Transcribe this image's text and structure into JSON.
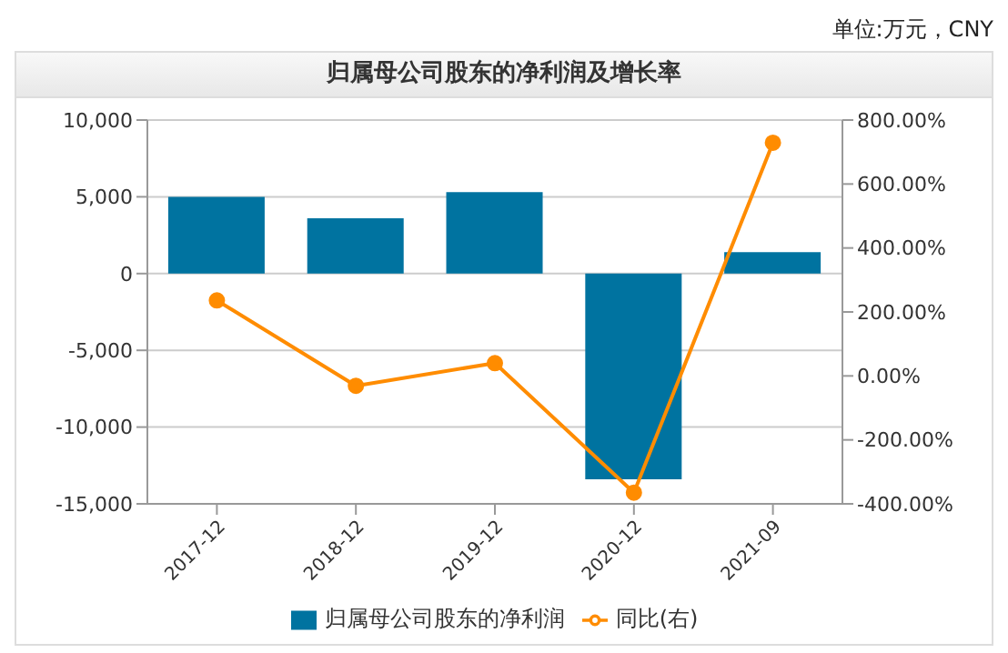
{
  "chart_data": {
    "type": "bar",
    "title": "归属母公司股东的净利润及增长率",
    "annotations": [
      "单位:万元，CNY"
    ],
    "categories": [
      "2017-12",
      "2018-12",
      "2019-12",
      "2020-12",
      "2021-09"
    ],
    "series": [
      {
        "name": "归属母公司股东的净利润",
        "color": "#0073a0",
        "values": [
          5000,
          3600,
          5300,
          -13400,
          1400
        ]
      },
      {
        "name": "同比(右)",
        "type": "line",
        "axis": "y2",
        "color": "#ff8c00",
        "marker": "circle",
        "values": [
          236,
          -31,
          40,
          -365,
          729
        ]
      }
    ],
    "ylim": [
      -15000,
      10000
    ],
    "yticks": [
      {
        "value": -15000,
        "label": "-15,000"
      },
      {
        "value": -10000,
        "label": "-10,000"
      },
      {
        "value": -5000,
        "label": "-5,000"
      },
      0,
      {
        "value": 5000,
        "label": "5,000"
      },
      {
        "value": 10000,
        "label": "10,000"
      }
    ],
    "y2lim": [
      -400,
      800
    ],
    "y2ticks": [
      {
        "value": -400,
        "label": "-400.00%"
      },
      {
        "value": -200,
        "label": "-200.00%"
      },
      {
        "value": 0,
        "label": "0.00%"
      },
      {
        "value": 200,
        "label": "200.00%"
      },
      {
        "value": 400,
        "label": "400.00%"
      },
      {
        "value": 600,
        "label": "600.00%"
      },
      {
        "value": 800,
        "label": "800.00%"
      }
    ],
    "grid": "y",
    "legend": "bottom"
  }
}
